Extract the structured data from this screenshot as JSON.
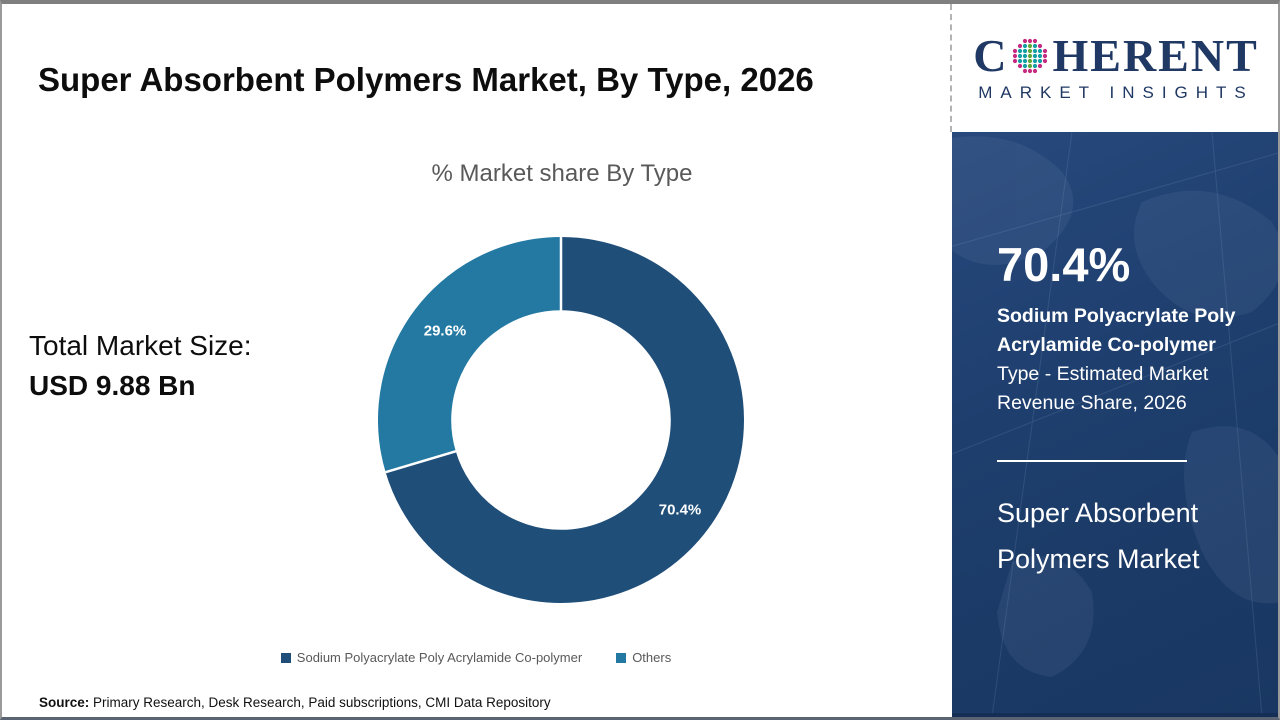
{
  "header": {
    "title": "Super Absorbent Polymers Market, By Type, 2026"
  },
  "logo": {
    "prefix": "C",
    "suffix": "HERENT",
    "subtitle": "MARKET INSIGHTS"
  },
  "total_market": {
    "label": "Total Market Size:",
    "value": "USD 9.88 Bn"
  },
  "chart_data": {
    "type": "pie",
    "subtype": "donut",
    "title": "% Market share By Type",
    "categories": [
      "Sodium Polyacrylate Poly Acrylamide Co-polymer",
      "Others"
    ],
    "values": [
      70.4,
      29.6
    ],
    "data_labels": [
      "70.4%",
      "29.6%"
    ],
    "colors": [
      "#1F4E79",
      "#2379A2"
    ],
    "inner_radius_ratio": 0.6,
    "start_angle_deg": 0,
    "legend_position": "bottom"
  },
  "sidebar": {
    "stat_value": "70.4%",
    "stat_label_bold": "Sodium Polyacrylate Poly Acrylamide Co-polymer",
    "stat_label_regular": "Type - Estimated Market Revenue Share, 2026",
    "market_name": "Super Absorbent Polymers Market"
  },
  "source": {
    "label": "Source:",
    "text": " Primary Research, Desk Research, Paid subscriptions, CMI Data Repository"
  }
}
